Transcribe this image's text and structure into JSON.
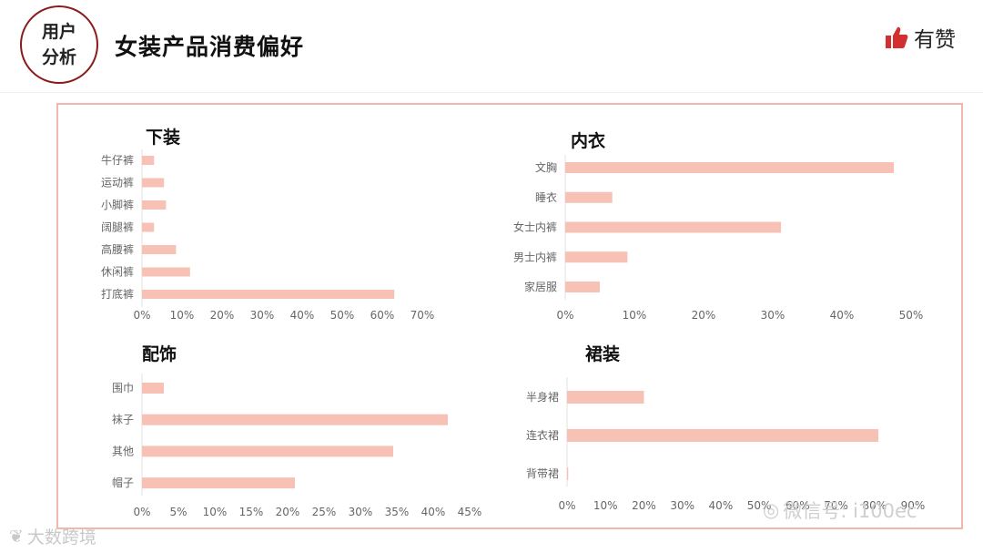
{
  "header": {
    "badge_line1": "用户",
    "badge_line2": "分析",
    "title": "女装产品消费偏好",
    "brand": "有赞",
    "brand_color": "#d32f2f"
  },
  "watermarks": {
    "left": "大数跨境",
    "right": "微信号: i100ec"
  },
  "colors": {
    "bar": "#f7c1b6",
    "frame": "#f2b7ae",
    "axis_text": "#666666"
  },
  "chart_data": [
    {
      "type": "bar",
      "orientation": "horizontal",
      "title": "下装",
      "categories": [
        "牛仔裤",
        "运动裤",
        "小脚裤",
        "阔腿裤",
        "高腰裤",
        "休闲裤",
        "打底裤"
      ],
      "values": [
        0.03,
        0.055,
        0.06,
        0.03,
        0.085,
        0.12,
        0.63
      ],
      "xlim": [
        0,
        0.7
      ],
      "xticks": [
        "0%",
        "10%",
        "20%",
        "30%",
        "40%",
        "50%",
        "60%",
        "70%"
      ],
      "grid": false
    },
    {
      "type": "bar",
      "orientation": "horizontal",
      "title": "内衣",
      "categories": [
        "文胸",
        "睡衣",
        "女士内裤",
        "男士内裤",
        "家居服"
      ],
      "values": [
        0.475,
        0.068,
        0.312,
        0.09,
        0.05
      ],
      "xlim": [
        0,
        0.5
      ],
      "xticks": [
        "0%",
        "10%",
        "20%",
        "30%",
        "40%",
        "50%"
      ],
      "grid": false
    },
    {
      "type": "bar",
      "orientation": "horizontal",
      "title": "配饰",
      "categories": [
        "围巾",
        "袜子",
        "其他",
        "帽子"
      ],
      "values": [
        0.03,
        0.42,
        0.345,
        0.21
      ],
      "xlim": [
        0,
        0.45
      ],
      "xticks": [
        "0%",
        "5%",
        "10%",
        "15%",
        "20%",
        "25%",
        "30%",
        "35%",
        "40%",
        "45%"
      ],
      "grid": false
    },
    {
      "type": "bar",
      "orientation": "horizontal",
      "title": "裙装",
      "categories": [
        "半身裙",
        "连衣裙",
        "背带裙"
      ],
      "values": [
        0.2,
        0.81,
        0.003
      ],
      "xlim": [
        0,
        0.9
      ],
      "xticks": [
        "0%",
        "10%",
        "20%",
        "30%",
        "40%",
        "50%",
        "60%",
        "70%",
        "80%",
        "90%"
      ],
      "grid": false
    }
  ]
}
